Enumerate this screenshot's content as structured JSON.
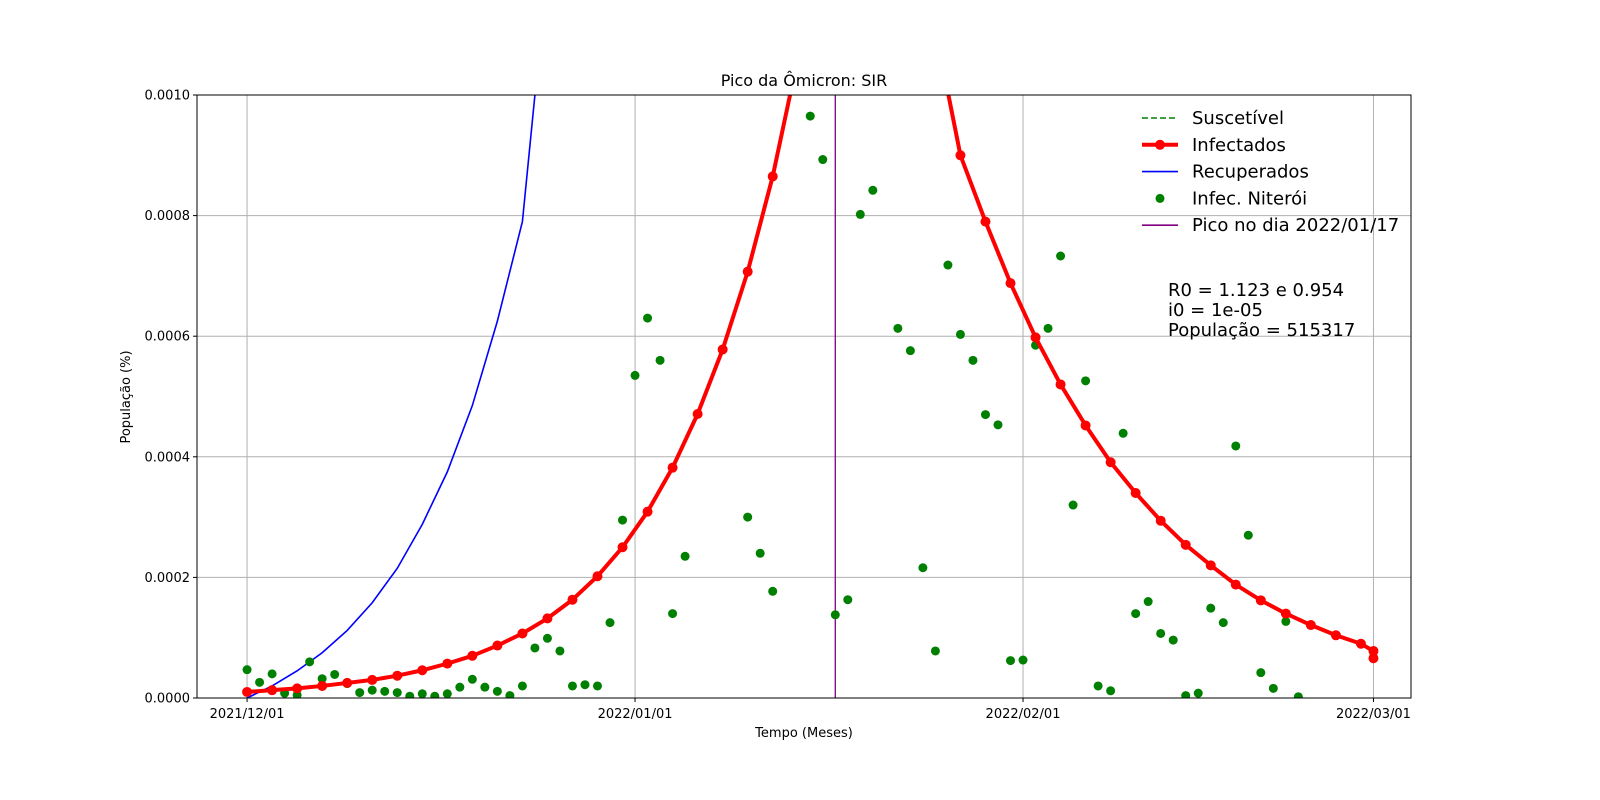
{
  "chart_data": {
    "type": "line",
    "title": "Pico da Ômicron: SIR",
    "xlabel": "Tempo (Meses)",
    "ylabel": "População (%)",
    "grid": true,
    "x_range": [
      "2021-11-27",
      "2022-03-04"
    ],
    "ylim": [
      0,
      0.001
    ],
    "y_ticks": [
      "0.0000",
      "0.0002",
      "0.0004",
      "0.0006",
      "0.0008",
      "0.0010"
    ],
    "x_ticks": [
      {
        "date": "2021-12-01",
        "label": "2021/12/01"
      },
      {
        "date": "2022-01-01",
        "label": "2022/01/01"
      },
      {
        "date": "2022-02-01",
        "label": "2022/02/01"
      },
      {
        "date": "2022-03-01",
        "label": "2022/03/01"
      }
    ],
    "legend_position": "top-right",
    "series": [
      {
        "name": "Suscetível",
        "style": "dashed",
        "color": "#008000",
        "x": [],
        "y": []
      },
      {
        "name": "Infectados",
        "style": "line-markers",
        "color": "#ff0000",
        "x": [
          "2021-12-01",
          "2021-12-03",
          "2021-12-05",
          "2021-12-07",
          "2021-12-09",
          "2021-12-11",
          "2021-12-13",
          "2021-12-15",
          "2021-12-17",
          "2021-12-19",
          "2021-12-21",
          "2021-12-23",
          "2021-12-25",
          "2021-12-27",
          "2021-12-29",
          "2021-12-31",
          "2022-01-02",
          "2022-01-04",
          "2022-01-06",
          "2022-01-08",
          "2022-01-10",
          "2022-01-12",
          "2022-01-14",
          "2022-01-27",
          "2022-01-29",
          "2022-01-31",
          "2022-02-02",
          "2022-02-04",
          "2022-02-06",
          "2022-02-08",
          "2022-02-10",
          "2022-02-12",
          "2022-02-14",
          "2022-02-16",
          "2022-02-18",
          "2022-02-20",
          "2022-02-22",
          "2022-02-24",
          "2022-02-26",
          "2022-02-28",
          "2022-03-01"
        ],
        "y": [
          1e-05,
          1.3e-05,
          1.6e-05,
          2e-05,
          2.5e-05,
          3e-05,
          3.7e-05,
          4.6e-05,
          5.7e-05,
          7e-05,
          8.7e-05,
          0.000107,
          0.000132,
          0.000163,
          0.000202,
          0.00025,
          0.000309,
          0.000382,
          0.000471,
          0.000578,
          0.000707,
          0.000865,
          0.00106,
          0.0009,
          0.00079,
          0.000688,
          0.000598,
          0.00052,
          0.000452,
          0.000391,
          0.00034,
          0.000294,
          0.000254,
          0.00022,
          0.000188,
          0.000162,
          0.00014,
          0.000121,
          0.000104,
          9e-05,
          7.8e-05
        ],
        "y_end": 6.6e-05
      },
      {
        "name": "Recuperados",
        "style": "line",
        "color": "#0000ff",
        "x": [
          "2021-12-01",
          "2021-12-03",
          "2021-12-05",
          "2021-12-07",
          "2021-12-09",
          "2021-12-11",
          "2021-12-13",
          "2021-12-15",
          "2021-12-17",
          "2021-12-19",
          "2021-12-21",
          "2021-12-23",
          "2021-12-24"
        ],
        "y": [
          0,
          2e-05,
          4.5e-05,
          7.5e-05,
          0.000112,
          0.000158,
          0.000215,
          0.000288,
          0.000375,
          0.000485,
          0.000625,
          0.00079,
          0.001
        ]
      },
      {
        "name": "Infec. Niterói",
        "style": "scatter",
        "color": "#008000",
        "x": [
          "2021-12-01",
          "2021-12-02",
          "2021-12-03",
          "2021-12-04",
          "2021-12-05",
          "2021-12-06",
          "2021-12-07",
          "2021-12-08",
          "2021-12-09",
          "2021-12-10",
          "2021-12-11",
          "2021-12-12",
          "2021-12-13",
          "2021-12-14",
          "2021-12-15",
          "2021-12-16",
          "2021-12-17",
          "2021-12-18",
          "2021-12-19",
          "2021-12-20",
          "2021-12-21",
          "2021-12-22",
          "2021-12-23",
          "2021-12-24",
          "2021-12-25",
          "2021-12-26",
          "2021-12-27",
          "2021-12-28",
          "2021-12-29",
          "2021-12-30",
          "2021-12-31",
          "2022-01-01",
          "2022-01-02",
          "2022-01-03",
          "2022-01-04",
          "2022-01-05",
          "2022-01-06",
          "2022-01-07",
          "2022-01-08",
          "2022-01-09",
          "2022-01-10",
          "2022-01-11",
          "2022-01-12",
          "2022-01-13",
          "2022-01-14",
          "2022-01-15",
          "2022-01-16",
          "2022-01-17",
          "2022-01-18",
          "2022-01-19",
          "2022-01-20",
          "2022-01-21",
          "2022-01-22",
          "2022-01-23",
          "2022-01-24",
          "2022-01-25",
          "2022-01-26",
          "2022-01-27",
          "2022-01-28",
          "2022-01-29",
          "2022-01-30",
          "2022-01-31",
          "2022-02-01",
          "2022-02-02",
          "2022-02-03",
          "2022-02-04",
          "2022-02-05",
          "2022-02-06",
          "2022-02-07",
          "2022-02-08",
          "2022-02-09",
          "2022-02-10",
          "2022-02-11",
          "2022-02-12",
          "2022-02-13",
          "2022-02-14",
          "2022-02-15",
          "2022-02-16",
          "2022-02-17",
          "2022-02-18",
          "2022-02-19",
          "2022-02-20",
          "2022-02-21",
          "2022-02-22",
          "2022-02-23",
          "2022-02-24",
          "2022-02-25",
          "2022-02-26",
          "2022-02-27",
          "2022-02-28",
          "2022-03-01"
        ],
        "y": [
          4.7e-05,
          2.6e-05,
          4e-05,
          8e-06,
          5e-06,
          6e-05,
          3.2e-05,
          3.9e-05,
          2.4e-05,
          9e-06,
          1.3e-05,
          1.1e-05,
          9e-06,
          3e-06,
          7e-06,
          3e-06,
          7e-06,
          1.8e-05,
          3.1e-05,
          1.8e-05,
          1.1e-05,
          4e-06,
          2e-05,
          8.3e-05,
          9.9e-05,
          7.8e-05,
          2e-05,
          2.2e-05,
          2e-05,
          0.000125,
          0.000295,
          0.000535,
          0.00063,
          0.00056,
          0.00014,
          0.000235,
          null,
          null,
          null,
          null,
          0.0003,
          0.00024,
          0.000177,
          null,
          null,
          0.000965,
          0.000893,
          0.000138,
          0.000163,
          0.000802,
          0.000842,
          null,
          0.000613,
          0.000576,
          0.000216,
          7.8e-05,
          0.000718,
          0.000603,
          0.00056,
          0.00047,
          0.000453,
          6.2e-05,
          6.3e-05,
          0.000585,
          0.000613,
          0.000733,
          0.00032,
          0.000526,
          2e-05,
          1.2e-05,
          0.000439,
          0.00014,
          0.00016,
          0.000107,
          9.6e-05,
          4e-06,
          8e-06,
          0.000149,
          0.000125,
          0.000418,
          0.00027,
          4.2e-05,
          1.6e-05,
          0.000127,
          2e-06,
          null,
          null,
          null,
          null,
          null,
          null
        ]
      },
      {
        "name": "Pico no dia 2022/01/17",
        "style": "vline",
        "color": "#800080",
        "x": [
          "2022-01-17"
        ]
      }
    ],
    "annotation": [
      "R0 = 1.123 e 0.954",
      "i0 = 1e-05",
      "População = 515317"
    ]
  }
}
